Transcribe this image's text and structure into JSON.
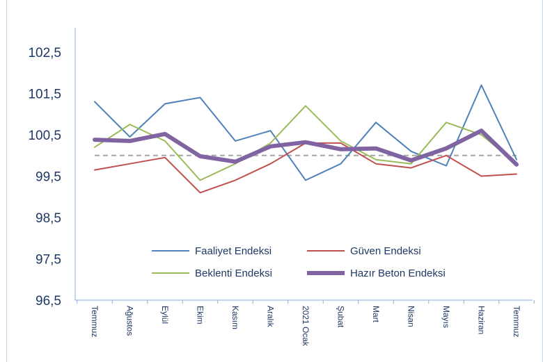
{
  "chart_data": {
    "type": "line",
    "title": "",
    "xlabel": "",
    "ylabel": "",
    "categories": [
      "Temmuz",
      "Ağustos",
      "Eylül",
      "Ekim",
      "Kasım",
      "Aralık",
      "2021 Ocak",
      "Şubat",
      "Mart",
      "Nisan",
      "Mayıs",
      "Haziran",
      "Temmuz"
    ],
    "yticks": [
      "102,5",
      "101,5",
      "100,5",
      "99,5",
      "98,5",
      "97,5",
      "96,5"
    ],
    "ylim": [
      96.5,
      103.2
    ],
    "grid": false,
    "legend": "bottom-inside",
    "reference_line": {
      "value": 100,
      "style": "dashed",
      "color": "#a6a6a6"
    },
    "series": [
      {
        "name": "Faaliyet Endeksi",
        "color": "#4f81bd",
        "width": 2,
        "values": [
          101.3,
          100.45,
          101.25,
          101.4,
          100.35,
          100.6,
          99.4,
          99.8,
          100.8,
          100.1,
          99.75,
          101.7,
          99.9
        ]
      },
      {
        "name": "Güven Endeksi",
        "color": "#c0504d",
        "width": 2,
        "values": [
          99.65,
          99.8,
          99.95,
          99.1,
          99.4,
          99.8,
          100.3,
          100.3,
          99.8,
          99.7,
          100.0,
          99.5,
          99.55
        ]
      },
      {
        "name": "Beklenti Endeksi",
        "color": "#9bbb59",
        "width": 2,
        "values": [
          100.2,
          100.75,
          100.35,
          99.4,
          99.8,
          100.3,
          101.2,
          100.35,
          99.9,
          99.8,
          100.8,
          100.5,
          99.8
        ]
      },
      {
        "name": "Hazır Beton Endeksi",
        "color": "#8064a2",
        "width": 6,
        "values": [
          100.38,
          100.35,
          100.52,
          99.98,
          99.85,
          100.22,
          100.32,
          100.15,
          100.17,
          99.88,
          100.17,
          100.6,
          99.78
        ]
      }
    ]
  }
}
